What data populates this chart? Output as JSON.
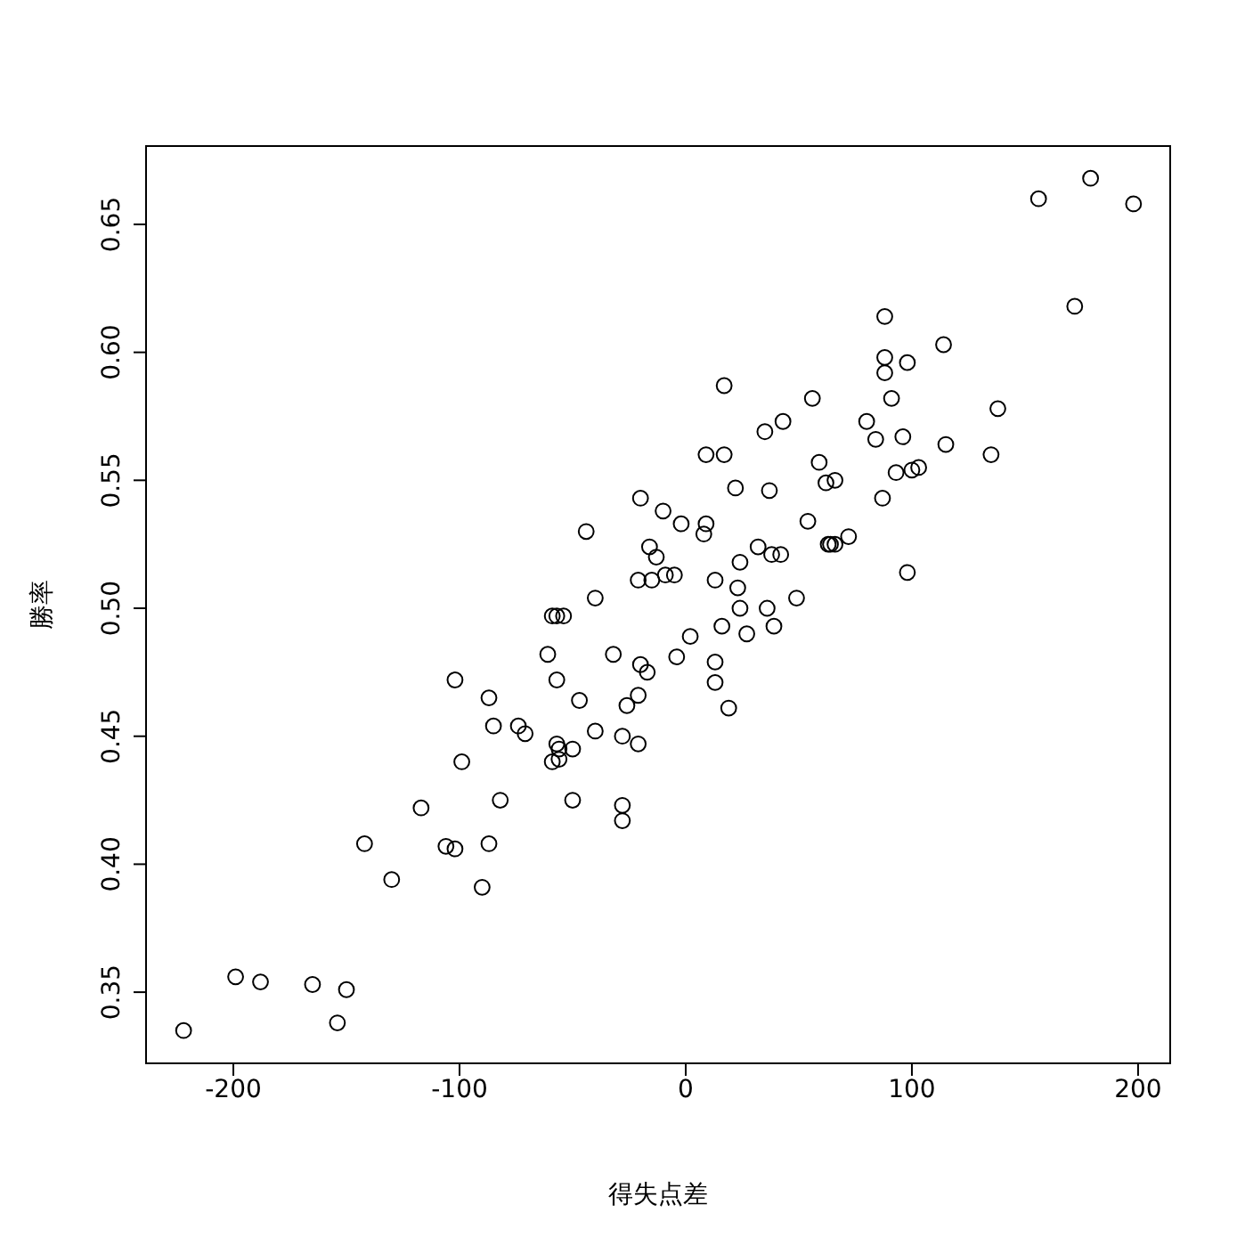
{
  "chart_data": {
    "type": "scatter",
    "xlabel": "得失点差",
    "ylabel": "勝率",
    "marker": "circle",
    "xlim": [
      -238.6,
      214.2
    ],
    "ylim": [
      0.3222,
      0.6806
    ],
    "xticks": [
      -200,
      -100,
      0,
      100,
      200
    ],
    "yticks": [
      {
        "value": 0.35,
        "label": "0.35"
      },
      {
        "value": 0.4,
        "label": "0.40"
      },
      {
        "value": 0.45,
        "label": "0.45"
      },
      {
        "value": 0.5,
        "label": "0.50"
      },
      {
        "value": 0.55,
        "label": "0.55"
      },
      {
        "value": 0.6,
        "label": "0.60"
      },
      {
        "value": 0.65,
        "label": "0.65"
      }
    ],
    "series": [
      {
        "color": "#000000",
        "x": [
          -222,
          -199,
          -188,
          -165,
          -154,
          -150,
          -142,
          -130,
          -117,
          -106,
          -102,
          -102,
          -99,
          -90,
          -87,
          -87,
          -85,
          -82,
          -74,
          -71,
          -61,
          -59,
          -57,
          -56,
          -56,
          -59,
          -57,
          -54,
          -57,
          -50,
          -50,
          -47,
          -44,
          -40,
          -40,
          -32,
          -28,
          -28,
          -28,
          -26,
          -21,
          -20,
          -21,
          -21,
          -20,
          -17,
          -16,
          -15,
          -13,
          -10,
          -9,
          -5,
          -4,
          -2,
          2,
          8,
          9,
          9,
          13,
          13,
          13,
          16,
          17,
          17,
          19,
          22,
          23,
          24,
          24,
          27,
          32,
          35,
          36,
          37,
          38,
          39,
          42,
          43,
          49,
          54,
          56,
          59,
          62,
          63,
          64,
          66,
          66,
          72,
          80,
          84,
          87,
          88,
          88,
          88,
          91,
          96,
          93,
          98,
          98,
          100,
          103,
          114,
          115,
          135,
          138,
          156,
          172,
          179,
          198
        ],
        "values": [
          0.335,
          0.356,
          0.354,
          0.353,
          0.338,
          0.351,
          0.408,
          0.394,
          0.422,
          0.407,
          0.406,
          0.472,
          0.44,
          0.391,
          0.408,
          0.465,
          0.454,
          0.425,
          0.454,
          0.451,
          0.482,
          0.44,
          0.447,
          0.441,
          0.445,
          0.497,
          0.497,
          0.497,
          0.472,
          0.445,
          0.425,
          0.464,
          0.53,
          0.452,
          0.504,
          0.482,
          0.423,
          0.417,
          0.45,
          0.462,
          0.466,
          0.478,
          0.447,
          0.511,
          0.543,
          0.475,
          0.524,
          0.511,
          0.52,
          0.538,
          0.513,
          0.513,
          0.481,
          0.533,
          0.489,
          0.529,
          0.56,
          0.533,
          0.511,
          0.471,
          0.479,
          0.493,
          0.587,
          0.56,
          0.461,
          0.547,
          0.508,
          0.518,
          0.5,
          0.49,
          0.524,
          0.569,
          0.5,
          0.546,
          0.521,
          0.493,
          0.521,
          0.573,
          0.504,
          0.534,
          0.582,
          0.557,
          0.549,
          0.525,
          0.525,
          0.525,
          0.55,
          0.528,
          0.573,
          0.566,
          0.543,
          0.614,
          0.598,
          0.592,
          0.582,
          0.567,
          0.553,
          0.514,
          0.596,
          0.554,
          0.555,
          0.603,
          0.564,
          0.56,
          0.578,
          0.66,
          0.618,
          0.668,
          0.658
        ]
      }
    ]
  }
}
